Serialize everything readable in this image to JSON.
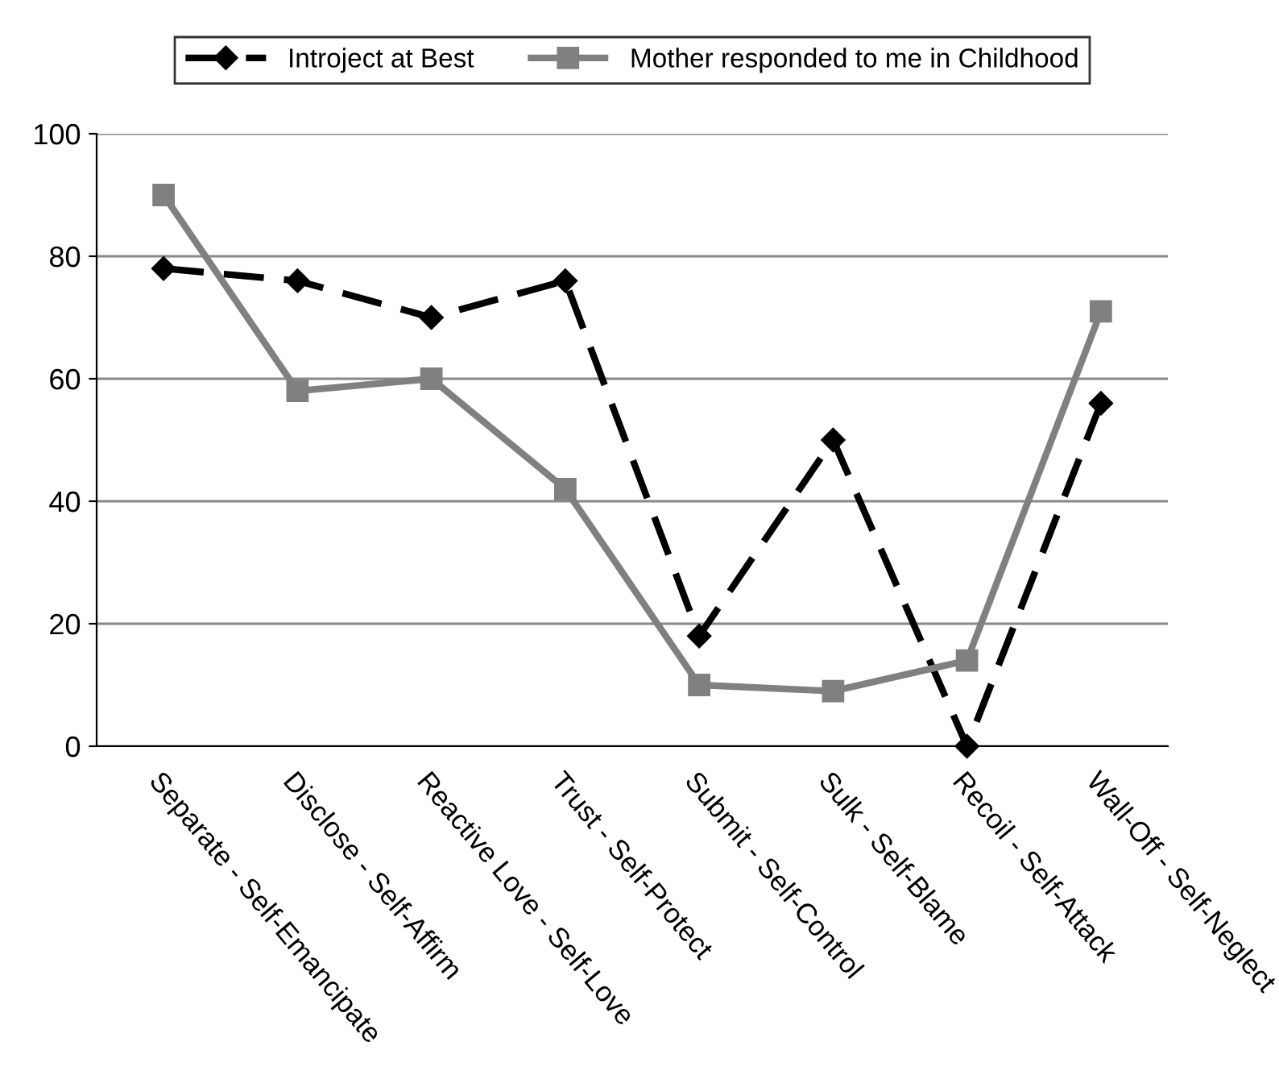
{
  "chart_data": {
    "type": "line",
    "categories": [
      "Separate - Self-Emancipate",
      "Disclose - Self-Affirm",
      "Reactive Love - Self-Love",
      "Trust - Self-Protect",
      "Submit - Self-Control",
      "Sulk - Self-Blame",
      "Recoil - Self-Attack",
      "Wall-Off - Self-Neglect"
    ],
    "series": [
      {
        "name": "Introject at Best",
        "color": "#000000",
        "marker": "diamond",
        "line_style": "dashed",
        "values": [
          78,
          76,
          70,
          76,
          18,
          50,
          0,
          56
        ]
      },
      {
        "name": "Mother responded to me in Childhood",
        "color": "#808080",
        "marker": "square",
        "line_style": "solid",
        "values": [
          90,
          58,
          60,
          42,
          10,
          9,
          14,
          71
        ]
      }
    ],
    "ylim": [
      0,
      100
    ],
    "yticks": [
      0,
      20,
      40,
      60,
      80,
      100
    ],
    "grid": "y",
    "legend": "top"
  }
}
